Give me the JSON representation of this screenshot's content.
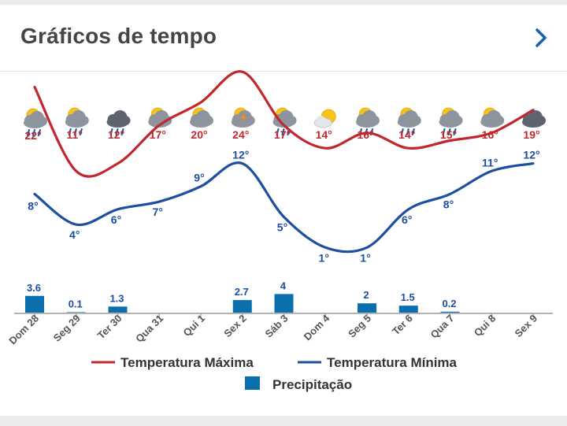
{
  "header": {
    "title": "Gráficos de tempo",
    "chevron_icon": "chevron-right-icon"
  },
  "colors": {
    "max": "#c0282d",
    "min": "#1d4fa1",
    "precip": "#0b6fad",
    "axis": "#9a9a9a",
    "label": "#555555"
  },
  "chart_data": {
    "type": "line",
    "categories": [
      "Dom 28",
      "Seg 29",
      "Ter 30",
      "Qua 31",
      "Qui 1",
      "Sex 2",
      "Sáb 3",
      "Dom 4",
      "Seg 5",
      "Ter 6",
      "Qua 7",
      "Qui 8",
      "Sex 9"
    ],
    "series": [
      {
        "name": "Temperatura Máxima",
        "values": [
          22,
          11,
          12,
          17,
          20,
          24,
          17,
          14,
          16,
          14,
          15,
          16,
          19
        ],
        "labels": [
          "22°",
          "11°",
          "12°",
          "17°",
          "20°",
          "24°",
          "17°",
          "14°",
          "16°",
          "14°",
          "15°",
          "16°",
          "19°"
        ]
      },
      {
        "name": "Temperatura Mínima",
        "values": [
          8,
          4,
          6,
          7,
          9,
          12,
          5,
          1,
          1,
          6,
          8,
          11,
          12
        ],
        "labels": [
          "8°",
          "4°",
          "6°",
          "7°",
          "9°",
          "12°",
          "5°",
          "1°",
          "1°",
          "6°",
          "8°",
          "11°",
          "12°"
        ]
      },
      {
        "name": "Precipitação",
        "type": "bar",
        "values": [
          3.6,
          0.1,
          1.3,
          null,
          null,
          2.7,
          4,
          null,
          2,
          1.5,
          0.2,
          null,
          null
        ],
        "labels": [
          "3.6",
          "0.1",
          "1.3",
          "",
          "",
          "2.7",
          "4",
          "",
          "2",
          "1.5",
          "0.2",
          "",
          ""
        ]
      }
    ],
    "weather_icons": [
      "cloud-sun-rain-icon",
      "cloud-sun-rain-icon",
      "cloud-rain-icon",
      "cloud-sun-icon",
      "cloud-sun-icon",
      "cloud-sun-storm-icon",
      "cloud-sun-rain-icon",
      "sun-cloud-icon",
      "cloud-sun-rain-icon",
      "cloud-sun-rain-icon",
      "cloud-sun-rain-icon",
      "cloud-sun-icon",
      "cloud-icon"
    ],
    "legend": {
      "placement": "bottom",
      "items": [
        "Temperatura Máxima",
        "Temperatura Mínima",
        "Precipitação"
      ]
    },
    "grid": false
  }
}
